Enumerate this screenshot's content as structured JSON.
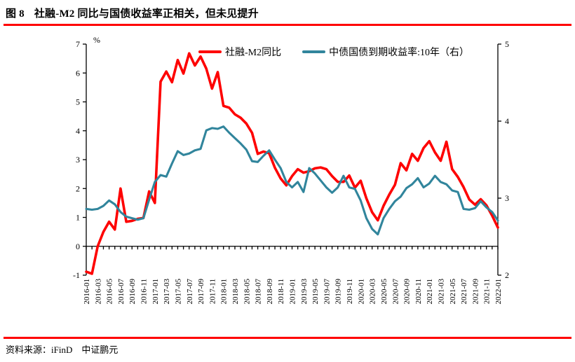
{
  "figure": {
    "label": "图 8",
    "title": "社融-M2 同比与国债收益率正相关，但未见提升"
  },
  "source_note": "资料来源：iFinD　中证鹏元",
  "colors": {
    "accent_rule": "#ff0000",
    "series_sf_m2": "#fe0000",
    "series_yield": "#31859c",
    "axis": "#000000"
  },
  "legend": [
    {
      "label": "社融-M2同比",
      "color_key": "series_sf_m2"
    },
    {
      "label": "中债国债到期收益率:10年（右）",
      "color_key": "series_yield"
    }
  ],
  "chart_data": {
    "type": "line",
    "title": "社融-M2 同比与国债收益率正相关，但未见提升",
    "x_start": "2016-01",
    "x_end": "2022-01",
    "x_frequency": "monthly",
    "x_tick_labels": [
      "2016-01",
      "2016-03",
      "2016-05",
      "2016-07",
      "2016-09",
      "2016-11",
      "2017-01",
      "2017-03",
      "2017-05",
      "2017-07",
      "2017-09",
      "2017-11",
      "2018-01",
      "2018-03",
      "2018-05",
      "2018-07",
      "2018-09",
      "2018-11",
      "2019-01",
      "2019-03",
      "2019-05",
      "2019-07",
      "2019-09",
      "2019-11",
      "2020-01",
      "2020-03",
      "2020-05",
      "2020-07",
      "2020-09",
      "2020-11",
      "2021-01",
      "2021-03",
      "2021-05",
      "2021-07",
      "2021-09",
      "2021-11",
      "2022-01"
    ],
    "left_axis": {
      "unit": "%",
      "min": -1,
      "max": 7,
      "ticks": [
        7,
        6,
        5,
        4,
        3,
        2,
        1,
        0,
        -1
      ]
    },
    "right_axis": {
      "min": 2,
      "max": 5,
      "ticks": [
        5,
        4,
        3,
        2
      ]
    },
    "grid": false,
    "legend_position": "top",
    "series": [
      {
        "name": "社融-M2同比",
        "axis": "left",
        "color_key": "series_sf_m2",
        "values": [
          -0.88,
          -0.95,
          0.0,
          0.5,
          0.85,
          0.58,
          2.0,
          0.85,
          0.88,
          0.95,
          0.98,
          1.9,
          1.5,
          5.7,
          6.05,
          5.68,
          6.45,
          5.98,
          6.68,
          6.26,
          6.57,
          6.15,
          5.46,
          6.03,
          4.86,
          4.8,
          4.57,
          4.45,
          4.25,
          3.93,
          3.2,
          3.28,
          3.22,
          2.72,
          2.35,
          2.11,
          2.43,
          2.67,
          2.55,
          2.6,
          2.7,
          2.73,
          2.67,
          2.43,
          2.23,
          2.23,
          2.45,
          2.03,
          2.27,
          1.66,
          1.18,
          0.9,
          1.4,
          1.79,
          2.13,
          2.88,
          2.63,
          3.2,
          2.96,
          3.4,
          3.64,
          3.25,
          2.96,
          3.62,
          2.67,
          2.4,
          2.05,
          1.62,
          1.44,
          1.63,
          1.42,
          1.06,
          0.65
        ]
      },
      {
        "name": "中债国债到期收益率:10年（右）",
        "axis": "right",
        "color_key": "series_yield",
        "values": [
          2.86,
          2.85,
          2.86,
          2.9,
          2.97,
          2.92,
          2.82,
          2.76,
          2.74,
          2.72,
          2.74,
          2.98,
          3.21,
          3.3,
          3.28,
          3.45,
          3.61,
          3.56,
          3.58,
          3.62,
          3.64,
          3.88,
          3.91,
          3.9,
          3.93,
          3.85,
          3.78,
          3.71,
          3.63,
          3.48,
          3.47,
          3.55,
          3.62,
          3.5,
          3.39,
          3.21,
          3.14,
          3.21,
          3.08,
          3.39,
          3.32,
          3.23,
          3.14,
          3.07,
          3.14,
          3.29,
          3.14,
          3.12,
          2.97,
          2.74,
          2.6,
          2.53,
          2.74,
          2.86,
          2.96,
          3.02,
          3.13,
          3.18,
          3.26,
          3.14,
          3.19,
          3.29,
          3.21,
          3.18,
          3.1,
          3.08,
          2.86,
          2.85,
          2.87,
          2.96,
          2.88,
          2.82,
          2.71
        ]
      }
    ]
  }
}
